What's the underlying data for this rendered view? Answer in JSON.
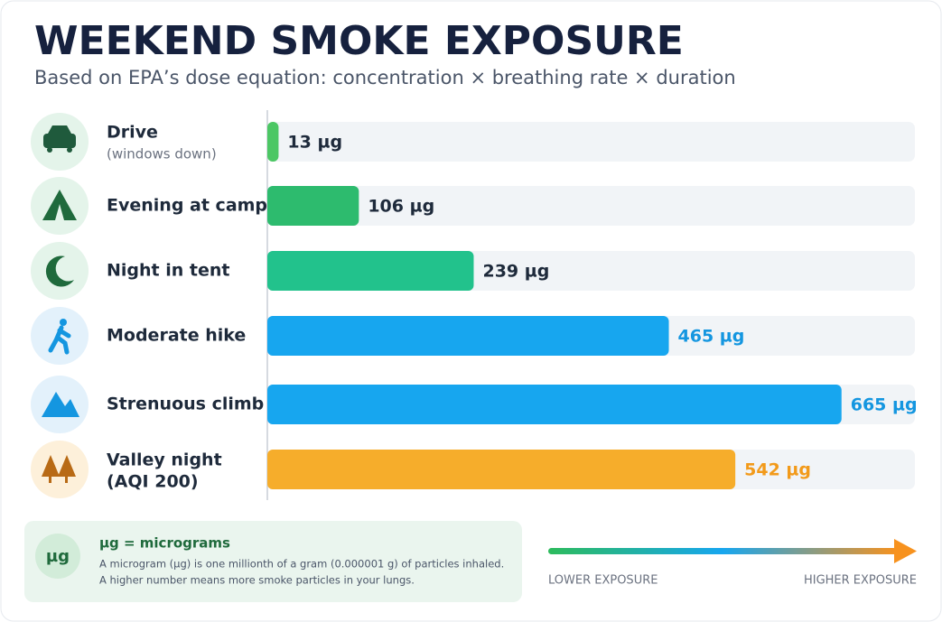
{
  "chart_data": {
    "type": "bar",
    "orientation": "horizontal",
    "title": "WEEKEND SMOKE EXPOSURE",
    "subtitle": "Based on EPA’s dose equation: concentration × breathing rate × duration",
    "categories": [
      "Drive",
      "Evening at camp",
      "Night in tent",
      "Moderate hike",
      "Strenuous climb",
      "Valley night"
    ],
    "category_notes": [
      "(windows down)",
      null,
      null,
      null,
      null,
      "(AQI 200)"
    ],
    "values": [
      13,
      106,
      239,
      465,
      665,
      542
    ],
    "value_labels": [
      "13 µg",
      "106 µg",
      "239 µg",
      "465 µg",
      "665 µg",
      "542 µg"
    ],
    "colors": [
      "#4cc764",
      "#2dbb6e",
      "#22c28c",
      "#17a6ef",
      "#17a6ef",
      "#f6ad2b"
    ],
    "label_colors": [
      "#1e2a3b",
      "#1e2a3b",
      "#1e2a3b",
      "#1496e0",
      "#1496e0",
      "#f29a1a"
    ],
    "xlim": [
      0,
      750
    ],
    "legend": {
      "symbol": "µg",
      "title": "µg = micrograms",
      "lines": [
        "A microgram (µg) is one millionth of a gram (0.000001 g) of particles inhaled.",
        "A higher number means more smoke particles in your lungs."
      ]
    },
    "scale": {
      "low": "LOWER EXPOSURE",
      "high": "HIGHER EXPOSURE"
    }
  }
}
